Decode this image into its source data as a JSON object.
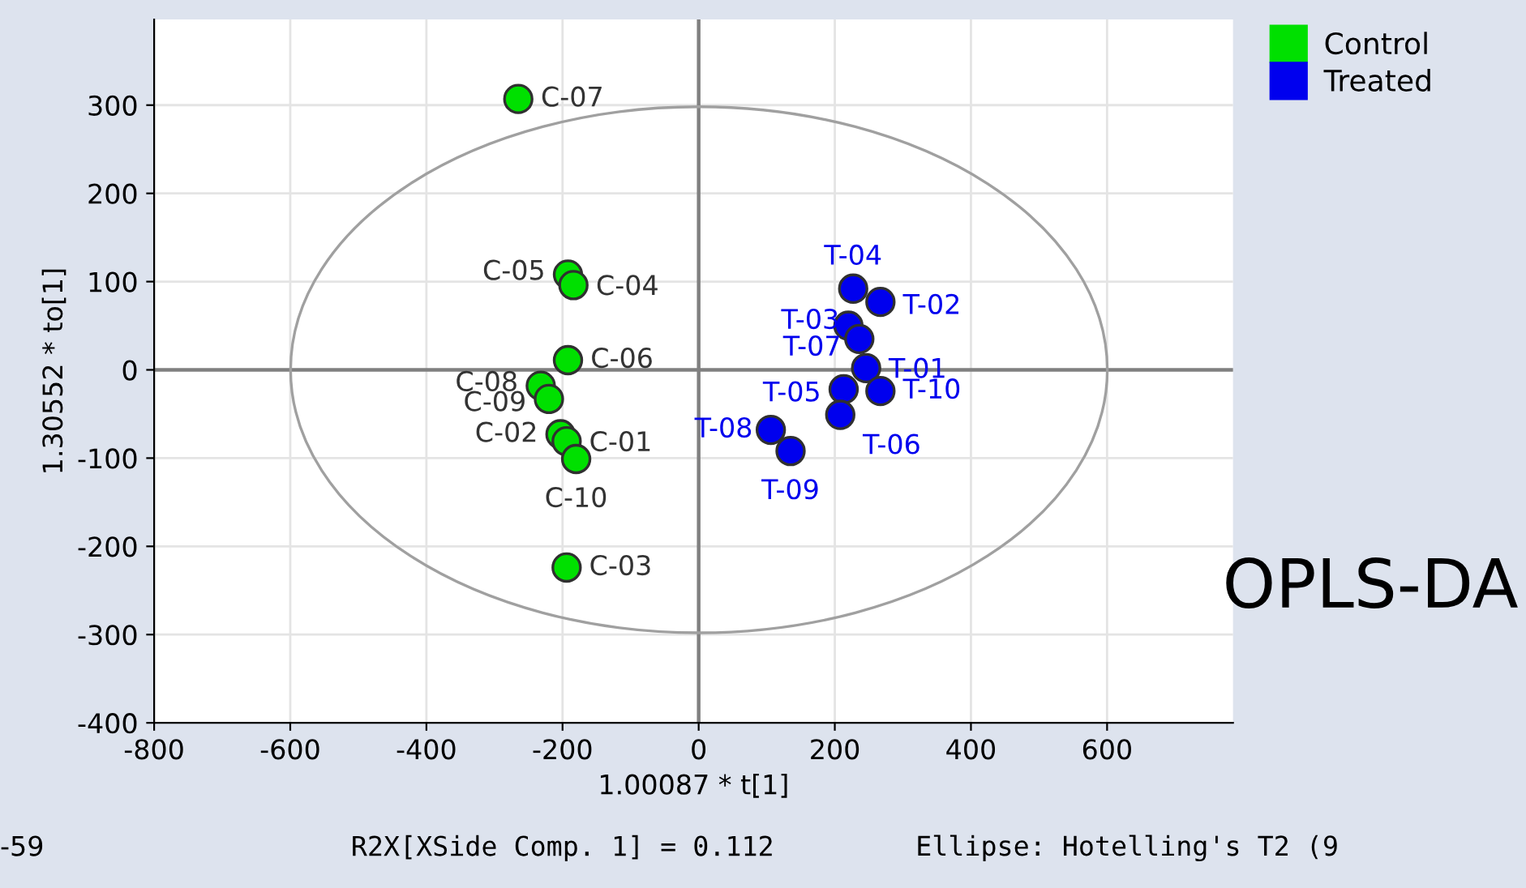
{
  "chart_data": {
    "type": "scatter",
    "xlabel": "1.00087 * t[1]",
    "ylabel": "1.30552 * to[1]",
    "xlim": [
      -800,
      785
    ],
    "ylim": [
      -400,
      397
    ],
    "xticks": [
      -800,
      -600,
      -400,
      -200,
      0,
      200,
      400,
      600
    ],
    "yticks": [
      -400,
      -300,
      -200,
      -100,
      0,
      100,
      200,
      300
    ],
    "grid": true,
    "legend": "top right",
    "marker": "circle",
    "series": [
      {
        "name": "Control",
        "color": "#00e000",
        "x": [
          -265,
          -192,
          -184,
          -192,
          -232,
          -220,
          -203,
          -194,
          -180,
          -194
        ],
        "values": [
          307,
          108,
          96,
          11,
          -18,
          -33,
          -73,
          -81,
          -101,
          -224
        ],
        "value_labels": [
          "C-07",
          "C-05",
          "C-04",
          "C-06",
          "C-08",
          "C-09",
          "C-02",
          "C-01",
          "C-10",
          "C-03"
        ]
      },
      {
        "name": "Treated",
        "color": "#0000ee",
        "x": [
          227,
          267,
          220,
          236,
          246,
          213,
          267,
          208,
          106,
          135
        ],
        "values": [
          92,
          77,
          50,
          35,
          2,
          -22,
          -24,
          -51,
          -68,
          -92
        ],
        "value_labels": [
          "T-04",
          "T-02",
          "T-03",
          "T-07",
          "T-01",
          "T-05",
          "T-10",
          "T-06",
          "T-08",
          "T-09"
        ]
      }
    ],
    "annotations": [
      "OPLS-DA",
      "-59",
      "R2X[XSide Comp. 1] = 0.112",
      "Ellipse: Hotelling's T2 (9"
    ]
  }
}
